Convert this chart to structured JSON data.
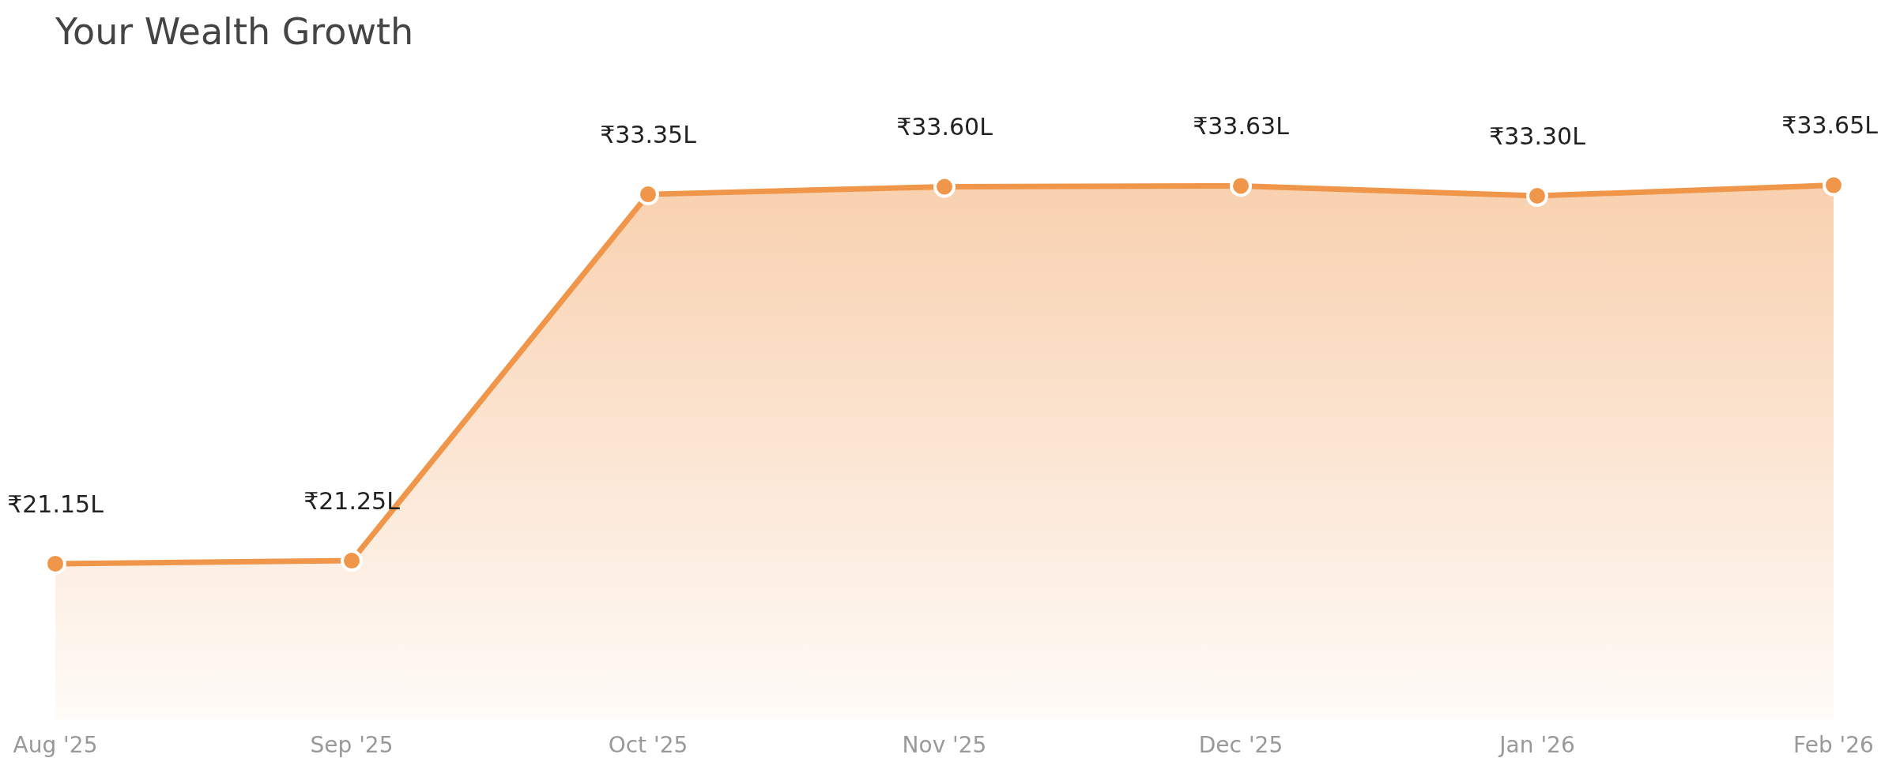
{
  "chart_data": {
    "type": "area",
    "title": "Your Wealth Growth",
    "categories": [
      "Aug '25",
      "Sep '25",
      "Oct '25",
      "Nov '25",
      "Dec '25",
      "Jan '26",
      "Feb '26"
    ],
    "series": [
      {
        "color": "#f0964a",
        "values": [
          21.15,
          21.25,
          33.35,
          33.6,
          33.63,
          33.3,
          33.65
        ],
        "value_labels": [
          "₹21.15L",
          "₹21.25L",
          "₹33.35L",
          "₹33.60L",
          "₹33.63L",
          "₹33.30L",
          "₹33.65L"
        ]
      }
    ],
    "tick_labels": "x",
    "grid": false,
    "legend": false,
    "marker": "circle",
    "line_style": "solid"
  }
}
